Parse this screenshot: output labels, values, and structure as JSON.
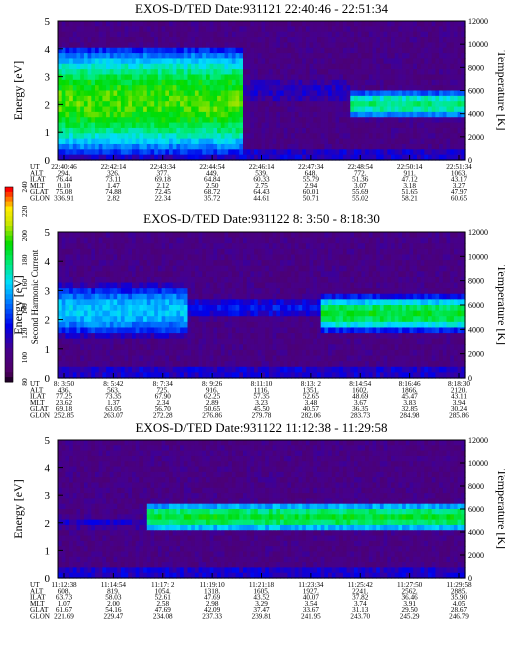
{
  "panels": [
    {
      "title": "EXOS-D/TED   Date:931121  22:40:46 - 22:51:34",
      "ylabel": "Energy [eV]",
      "ylabel_right": "Temperature [K]",
      "yticks": [
        "0",
        "1",
        "2",
        "3",
        "4",
        "5"
      ],
      "yticks_right": [
        "0",
        "2000",
        "4000",
        "6000",
        "8000",
        "10000",
        "12000"
      ],
      "ephem_labels": [
        "UT",
        "ALT",
        "ILAT",
        "MLT",
        "GLAT",
        "GLON"
      ],
      "ephem": [
        [
          "22:40:46",
          "294.",
          "76.44",
          "0.10",
          "75.08",
          "336.91"
        ],
        [
          "22:42:14",
          "326.",
          "73.11",
          "1.47",
          "74.88",
          "2.82"
        ],
        [
          "22:43:34",
          "377.",
          "69.18",
          "2.12",
          "72.45",
          "22.34"
        ],
        [
          "22:44:54",
          "449.",
          "64.84",
          "2.50",
          "68.72",
          "35.72"
        ],
        [
          "22:46:14",
          "539.",
          "60.33",
          "2.75",
          "64.43",
          "44.61"
        ],
        [
          "22:47:34",
          "648.",
          "55.79",
          "2.94",
          "60.01",
          "50.71"
        ],
        [
          "22:48:54",
          "772.",
          "51.36",
          "3.07",
          "55.69",
          "55.02"
        ],
        [
          "22:50:14",
          "911.",
          "47.12",
          "3.18",
          "51.65",
          "58.21"
        ],
        [
          "22:51:34",
          "1063.",
          "43.17",
          "3.27",
          "47.97",
          "60.65"
        ]
      ]
    },
    {
      "title": "EXOS-D/TED   Date:931122   8: 3:50 - 8:18:30",
      "ylabel": "Energy [eV]",
      "ylabel_right": "Temperature [K]",
      "yticks": [
        "0",
        "1",
        "2",
        "3",
        "4",
        "5"
      ],
      "yticks_right": [
        "0",
        "2000",
        "4000",
        "6000",
        "8000",
        "10000",
        "12000"
      ],
      "ephem_labels": [
        "UT",
        "ALT",
        "ILAT",
        "MLT",
        "GLAT",
        "GLON"
      ],
      "ephem": [
        [
          "8: 3:50",
          "436.",
          "77.25",
          "23.62",
          "69.18",
          "252.85"
        ],
        [
          "8: 5:42",
          "563.",
          "73.35",
          "1.37",
          "63.05",
          "263.07"
        ],
        [
          "8: 7:34",
          "725.",
          "67.90",
          "2.34",
          "56.70",
          "272.28"
        ],
        [
          "8: 9:26",
          "916.",
          "62.25",
          "2.89",
          "50.65",
          "276.86"
        ],
        [
          "8:11:10",
          "1116.",
          "57.35",
          "3.23",
          "45.50",
          "279.78"
        ],
        [
          "8:13: 2",
          "1351.",
          "52.65",
          "3.48",
          "40.57",
          "282.06"
        ],
        [
          "8:14:54",
          "1602.",
          "48.69",
          "3.67",
          "36.35",
          "283.73"
        ],
        [
          "8:16:46",
          "1866.",
          "45.47",
          "3.83",
          "32.85",
          "284.98"
        ],
        [
          "8:18:30",
          "2120.",
          "43.11",
          "3.94",
          "30.24",
          "285.86"
        ]
      ]
    },
    {
      "title": "EXOS-D/TED   Date:931122   11:12:38 - 11:29:58",
      "ylabel": "Energy [eV]",
      "ylabel_right": "Temperature [K]",
      "yticks": [
        "0",
        "1",
        "2",
        "3",
        "4",
        "5"
      ],
      "yticks_right": [
        "0",
        "2000",
        "4000",
        "6000",
        "8000",
        "10000",
        "12000"
      ],
      "ephem_labels": [
        "UT",
        "ALT",
        "ILAT",
        "MLT",
        "GLAT",
        "GLON"
      ],
      "ephem": [
        [
          "11:12:38",
          "608.",
          "63.73",
          "1.07",
          "61.67",
          "221.69"
        ],
        [
          "11:14:54",
          "819.",
          "58.03",
          "2.00",
          "54.16",
          "229.47"
        ],
        [
          "11:17: 2",
          "1054.",
          "52.61",
          "2.58",
          "47.69",
          "234.08"
        ],
        [
          "11:19:10",
          "1318.",
          "47.69",
          "2.98",
          "42.09",
          "237.33"
        ],
        [
          "11:21:18",
          "1605.",
          "43.52",
          "3.29",
          "37.47",
          "239.81"
        ],
        [
          "11:23:34",
          "1927.",
          "40.07",
          "3.54",
          "33.67",
          "241.95"
        ],
        [
          "11:25:42",
          "2241.",
          "37.82",
          "3.74",
          "31.13",
          "243.70"
        ],
        [
          "11:27:50",
          "2562.",
          "36.46",
          "3.91",
          "29.50",
          "245.29"
        ],
        [
          "11:29:58",
          "2885.",
          "35.90",
          "4.05",
          "28.67",
          "246.79"
        ]
      ]
    }
  ],
  "colorbar": {
    "label": "Second Harmonic Current",
    "ticks": [
      "80",
      "100",
      "120",
      "140",
      "160",
      "180",
      "200",
      "220",
      "240"
    ]
  },
  "chart_data": [
    {
      "type": "heatmap",
      "title": "EXOS-D/TED   Date:931121  22:40:46 - 22:51:34",
      "ylabel": "Energy [eV]",
      "ylabel_right": "Temperature [K]",
      "x": [
        "22:40:46",
        "22:42:14",
        "22:43:34",
        "22:44:54",
        "22:46:14",
        "22:47:34",
        "22:48:54",
        "22:50:14",
        "22:51:34"
      ],
      "ylim": [
        0,
        5
      ],
      "ylim_right": [
        0,
        12000
      ],
      "zlim": [
        80,
        240
      ],
      "bands": [
        {
          "x_from": 0.0,
          "x_to": 0.45,
          "energy_center": 2.1,
          "energy_halfwidth": 1.2,
          "level": 200
        },
        {
          "x_from": 0.45,
          "x_to": 0.72,
          "energy_center": 2.5,
          "energy_halfwidth": 0.6,
          "level": 120
        },
        {
          "x_from": 0.72,
          "x_to": 1.0,
          "energy_center": 2.0,
          "energy_halfwidth": 0.35,
          "level": 180
        }
      ]
    },
    {
      "type": "heatmap",
      "title": "EXOS-D/TED   Date:931122   8: 3:50 - 8:18:30",
      "ylabel": "Energy [eV]",
      "ylabel_right": "Temperature [K]",
      "x": [
        "8: 3:50",
        "8: 5:42",
        "8: 7:34",
        "8: 9:26",
        "8:11:10",
        "8:13: 2",
        "8:14:54",
        "8:16:46",
        "8:18:30"
      ],
      "ylim": [
        0,
        5
      ],
      "ylim_right": [
        0,
        12000
      ],
      "zlim": [
        80,
        240
      ],
      "bands": [
        {
          "x_from": 0.0,
          "x_to": 0.32,
          "energy_center": 2.3,
          "energy_halfwidth": 0.7,
          "level": 160
        },
        {
          "x_from": 0.32,
          "x_to": 0.65,
          "energy_center": 2.4,
          "energy_halfwidth": 0.4,
          "level": 130
        },
        {
          "x_from": 0.65,
          "x_to": 1.0,
          "energy_center": 2.2,
          "energy_halfwidth": 0.4,
          "level": 190
        }
      ]
    },
    {
      "type": "heatmap",
      "title": "EXOS-D/TED   Date:931122   11:12:38 - 11:29:58",
      "ylabel": "Energy [eV]",
      "ylabel_right": "Temperature [K]",
      "x": [
        "11:12:38",
        "11:14:54",
        "11:17: 2",
        "11:19:10",
        "11:21:18",
        "11:23:34",
        "11:25:42",
        "11:27:50",
        "11:29:58"
      ],
      "ylim": [
        0,
        5
      ],
      "ylim_right": [
        0,
        12000
      ],
      "zlim": [
        80,
        240
      ],
      "bands": [
        {
          "x_from": 0.0,
          "x_to": 0.22,
          "energy_center": 2.0,
          "energy_halfwidth": 0.3,
          "level": 120
        },
        {
          "x_from": 0.22,
          "x_to": 1.0,
          "energy_center": 2.2,
          "energy_halfwidth": 0.35,
          "level": 190
        }
      ]
    }
  ]
}
